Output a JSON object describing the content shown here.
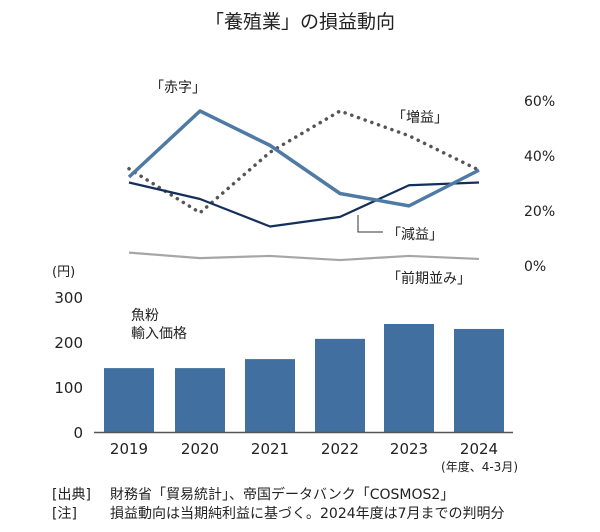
{
  "chart_data": [
    {
      "type": "line",
      "title": "「養殖業」の損益動向",
      "x": [
        "2019",
        "2020",
        "2021",
        "2022",
        "2023",
        "2024"
      ],
      "y_axis": {
        "side": "right",
        "ticks": [
          "0%",
          "20%",
          "40%",
          "60%"
        ],
        "tick_values": [
          0,
          20,
          40,
          60
        ],
        "ylim": [
          0,
          60
        ],
        "unit": "%"
      },
      "grid": false,
      "series": [
        {
          "name": "「赤字」",
          "style": "solid-thick",
          "color": "#4f7aa3",
          "values": [
            32,
            56,
            43.5,
            26,
            21.5,
            34.5
          ]
        },
        {
          "name": "「増益」",
          "style": "dotted",
          "color": "#555555",
          "values": [
            35,
            19,
            41,
            56,
            47,
            34.5
          ]
        },
        {
          "name": "「減益」",
          "style": "solid",
          "color": "#14305a",
          "values": [
            30,
            24,
            14,
            17.5,
            29,
            30
          ]
        },
        {
          "name": "「前期並み」",
          "style": "solid",
          "color": "#a6a6a6",
          "values": [
            4.5,
            2.5,
            3.3,
            1.8,
            3.3,
            2.2
          ]
        }
      ]
    },
    {
      "type": "bar",
      "series_label": "魚粉\n輸入価格",
      "series_label_lines": [
        "魚粉",
        "輸入価格"
      ],
      "categories": [
        "2019",
        "2020",
        "2021",
        "2022",
        "2023",
        "2024"
      ],
      "values": [
        142,
        142,
        162,
        207,
        240,
        229
      ],
      "color": "#416f9f",
      "ylabel": "(円)",
      "y_ticks": [
        "0",
        "100",
        "200",
        "300"
      ],
      "y_tick_values": [
        0,
        100,
        200,
        300
      ],
      "ylim": [
        0,
        300
      ],
      "xlabel": "(年度、4-3月)"
    }
  ],
  "notes": [
    {
      "label": "[出典]",
      "text": "財務省「貿易統計」、帝国データバンク「COSMOS2」"
    },
    {
      "label": "[注]",
      "text": "損益動向は当期純利益に基づく。2024年度は7月までの判明分"
    }
  ]
}
